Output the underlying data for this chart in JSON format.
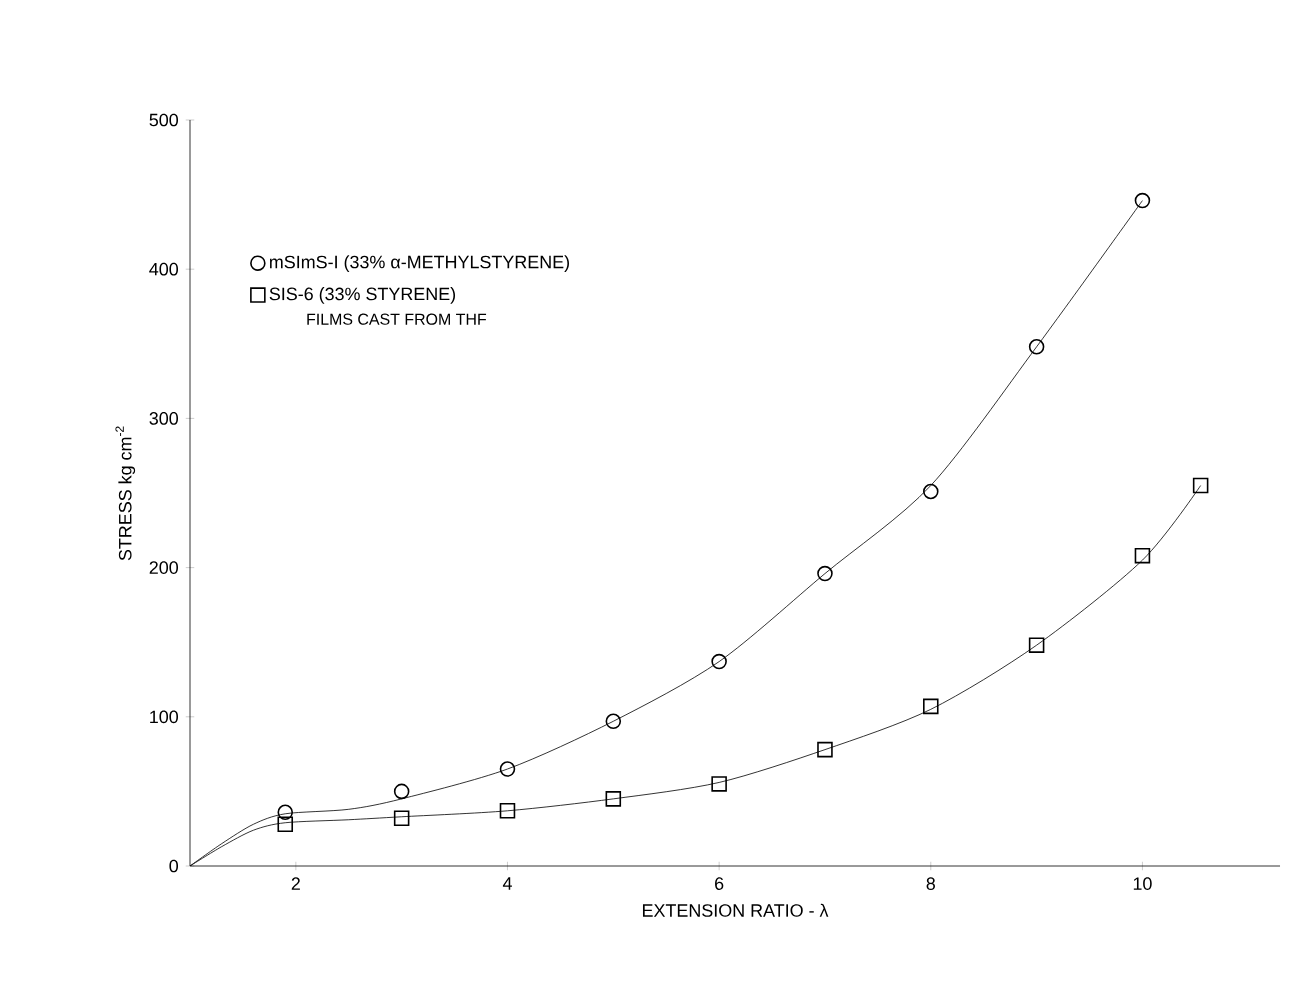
{
  "chart_data": {
    "type": "scatter",
    "xlabel": "EXTENSION RATIO - λ",
    "ylabel": "STRESS  kg cm$^{-2}$",
    "xlim": [
      1,
      11.3
    ],
    "ylim": [
      0,
      500
    ],
    "xticks": [
      2,
      4,
      6,
      8,
      10
    ],
    "yticks": [
      0,
      100,
      200,
      300,
      400,
      500
    ],
    "grid": false,
    "legend": "top left",
    "annotations": [
      "FILMS CAST FROM THF"
    ],
    "series": [
      {
        "name": "mSImS-I (33% α-METHYLSTYRENE)",
        "marker": "circle",
        "color": "#000000",
        "x": [
          1.9,
          3,
          4,
          5,
          6,
          7,
          8,
          9,
          10
        ],
        "values": [
          36,
          50,
          65,
          97,
          137,
          196,
          251,
          348,
          446
        ]
      },
      {
        "name": "SIS-6 (33% STYRENE)",
        "marker": "square",
        "color": "#000000",
        "x": [
          1.9,
          3,
          4,
          5,
          6,
          7,
          8,
          9,
          10,
          10.55
        ],
        "values": [
          28,
          32,
          37,
          45,
          55,
          78,
          107,
          148,
          208,
          255
        ]
      },
      {
        "type": "line",
        "marker": "none",
        "line_style": "solid",
        "color": "#000000",
        "x": [
          1,
          1.3,
          1.6,
          1.9,
          2.5,
          3,
          4,
          5,
          6,
          7,
          8,
          9,
          10
        ],
        "values": [
          0,
          15,
          28,
          35,
          38,
          45,
          65,
          97,
          137,
          196,
          255,
          348,
          446
        ]
      },
      {
        "type": "line",
        "marker": "none",
        "line_style": "solid",
        "color": "#000000",
        "x": [
          1,
          1.3,
          1.6,
          1.9,
          2.5,
          3,
          4,
          5,
          6,
          7,
          8,
          9,
          10,
          10.55
        ],
        "values": [
          0,
          13,
          24,
          29,
          31,
          33,
          37,
          45,
          56,
          78,
          105,
          148,
          205,
          255
        ]
      }
    ]
  }
}
